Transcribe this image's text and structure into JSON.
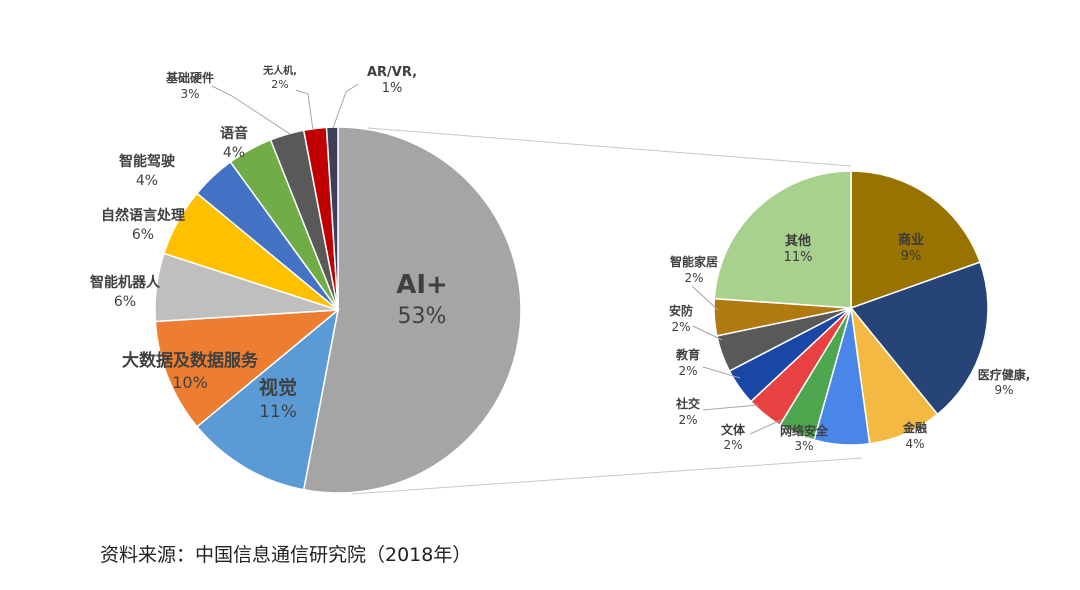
{
  "source": "资料来源：中国信息通信研究院（2018年）",
  "chart_data": [
    {
      "type": "pie",
      "slices": [
        {
          "label": "AI+",
          "pct": "53%",
          "value": 53,
          "color": "#A5A5A5"
        },
        {
          "label": "视觉",
          "pct": "11%",
          "value": 11,
          "color": "#5B9BD5"
        },
        {
          "label": "大数据及数据服务",
          "pct": "10%",
          "value": 10,
          "color": "#ED7D31"
        },
        {
          "label": "智能机器人",
          "pct": "6%",
          "value": 6,
          "color": "#BFBFBF"
        },
        {
          "label": "自然语言处理",
          "pct": "6%",
          "value": 6,
          "color": "#FFC000"
        },
        {
          "label": "智能驾驶",
          "pct": "4%",
          "value": 4,
          "color": "#4472C4"
        },
        {
          "label": "语音",
          "pct": "4%",
          "value": 4,
          "color": "#70AD47"
        },
        {
          "label": "基础硬件",
          "pct": "3%",
          "value": 3,
          "color": "#595959"
        },
        {
          "label": "无人机,",
          "pct": "2%",
          "value": 2,
          "color": "#C00000"
        },
        {
          "label": "AR/VR,",
          "pct": "1%",
          "value": 1,
          "color": "#3F3F58"
        }
      ]
    },
    {
      "type": "pie",
      "slices": [
        {
          "label": "商业",
          "pct": "9%",
          "value": 9,
          "color": "#997300"
        },
        {
          "label": "医疗健康,",
          "pct": "9%",
          "value": 9,
          "color": "#264478"
        },
        {
          "label": "金融",
          "pct": "4%",
          "value": 4,
          "color": "#F4B942"
        },
        {
          "label": "网络安全",
          "pct": "3%",
          "value": 3,
          "color": "#4A86E8"
        },
        {
          "label": "文体",
          "pct": "2%",
          "value": 2,
          "color": "#4EA64E"
        },
        {
          "label": "社交",
          "pct": "2%",
          "value": 2,
          "color": "#E84141"
        },
        {
          "label": "教育",
          "pct": "2%",
          "value": 2,
          "color": "#1847A5"
        },
        {
          "label": "安防",
          "pct": "2%",
          "value": 2,
          "color": "#595959"
        },
        {
          "label": "智能家居",
          "pct": "2%",
          "value": 2,
          "color": "#B07A10"
        },
        {
          "label": "其他",
          "pct": "11%",
          "value": 11,
          "color": "#A9D18E"
        }
      ]
    }
  ]
}
